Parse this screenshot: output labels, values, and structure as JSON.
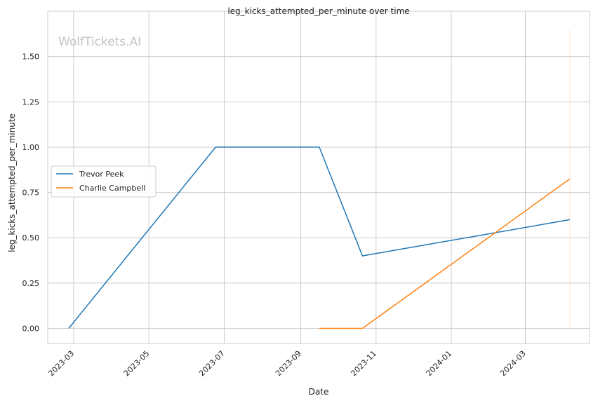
{
  "chart_data": {
    "type": "line",
    "title": "leg_kicks_attempted_per_minute over time",
    "xlabel": "Date",
    "ylabel": "leg_kicks_attempted_per_minute",
    "watermark": "WolfTickets.AI",
    "x_ticks": [
      "2023-03",
      "2023-05",
      "2023-07",
      "2023-09",
      "2023-11",
      "2024-01",
      "2024-03"
    ],
    "y_ticks": [
      "0.00",
      "0.25",
      "0.50",
      "0.75",
      "1.00",
      "1.25",
      "1.50"
    ],
    "xlim": [
      "2023-02-08",
      "2024-04-22"
    ],
    "ylim": [
      -0.083,
      1.75
    ],
    "grid": true,
    "legend_position": "center-left",
    "series": [
      {
        "name": "Trevor Peek",
        "color": "#1f77b4",
        "x": [
          "2023-02-25",
          "2023-06-24",
          "2023-09-16",
          "2023-10-21",
          "2024-04-06"
        ],
        "y": [
          0.0,
          1.0,
          1.0,
          0.4,
          0.6
        ]
      },
      {
        "name": "Charlie Campbell",
        "color": "#ff7f0e",
        "x": [
          "2023-09-16",
          "2023-10-21",
          "2024-04-06"
        ],
        "y": [
          0.0,
          0.0,
          0.825
        ]
      }
    ]
  }
}
